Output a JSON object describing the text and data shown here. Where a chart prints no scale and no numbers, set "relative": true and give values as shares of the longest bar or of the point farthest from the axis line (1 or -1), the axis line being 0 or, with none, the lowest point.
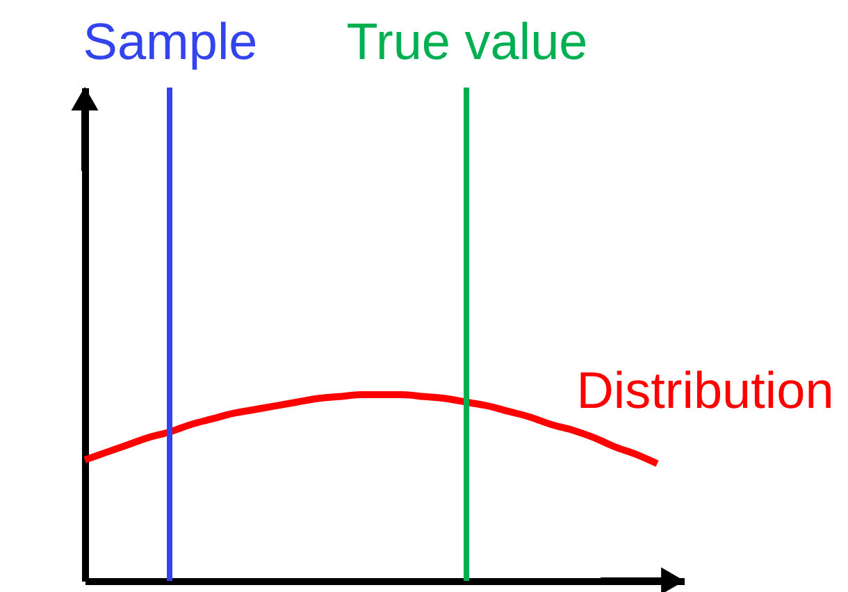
{
  "chart_data": {
    "type": "line",
    "relative": true,
    "tick_labels": "x",
    "categories": [
      null,
      null,
      null,
      null,
      "Sample",
      null,
      null,
      null,
      null,
      null,
      null,
      null,
      null,
      null,
      null,
      null,
      null,
      null,
      "True value",
      null,
      null,
      null,
      null,
      null,
      null,
      null,
      null,
      null
    ],
    "series": [
      {
        "name": "Distribution",
        "color": "#ff0000",
        "values": [
          0.65,
          0.69,
          0.73,
          0.77,
          0.8,
          0.84,
          0.87,
          0.9,
          0.92,
          0.94,
          0.96,
          0.98,
          0.99,
          1,
          1,
          1,
          0.99,
          0.98,
          0.96,
          0.94,
          0.91,
          0.88,
          0.84,
          0.81,
          0.77,
          0.72,
          0.68,
          0.63
        ]
      }
    ],
    "ref_lines": [
      {
        "axis": "x",
        "value": "Sample",
        "color": "#3344ee"
      },
      {
        "axis": "x",
        "value": "True value",
        "color": "#00b050"
      }
    ]
  }
}
